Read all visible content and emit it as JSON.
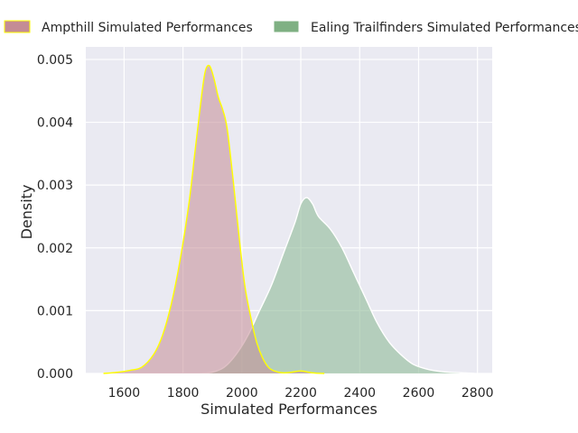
{
  "chart_data": {
    "type": "area",
    "subtype": "kde",
    "title": "",
    "xlabel": "Simulated Performances",
    "ylabel": "Density",
    "xlim": [
      1470,
      2850
    ],
    "ylim": [
      0,
      0.0052
    ],
    "xticks": [
      1600,
      1800,
      2000,
      2200,
      2400,
      2600,
      2800
    ],
    "yticks": [
      0.0,
      0.001,
      0.002,
      0.003,
      0.004,
      0.005
    ],
    "ytick_labels": [
      "0.000",
      "0.001",
      "0.002",
      "0.003",
      "0.004",
      "0.005"
    ],
    "grid": true,
    "legend_position": "top",
    "background": "#eaeaf2",
    "series": [
      {
        "name": "Ampthill Simulated Performances",
        "fill": "#c48c95",
        "fill_opacity": 0.55,
        "edge": "#ffff00",
        "x": [
          1530,
          1580,
          1620,
          1660,
          1700,
          1730,
          1760,
          1790,
          1820,
          1840,
          1860,
          1875,
          1890,
          1905,
          1920,
          1935,
          1950,
          1970,
          1990,
          2010,
          2030,
          2050,
          2070,
          2090,
          2110,
          2140,
          2170,
          2200,
          2240,
          2280
        ],
        "y": [
          0,
          2e-05,
          5e-05,
          0.0001,
          0.0003,
          0.0006,
          0.0011,
          0.0018,
          0.0027,
          0.0035,
          0.0043,
          0.0048,
          0.0049,
          0.0047,
          0.0044,
          0.0042,
          0.0039,
          0.0031,
          0.0022,
          0.0014,
          0.0009,
          0.0005,
          0.00025,
          0.0001,
          4e-05,
          1e-05,
          2e-05,
          4e-05,
          1e-05,
          0
        ]
      },
      {
        "name": "Ealing Trailfinders Simulated Performances",
        "fill": "#8fba98",
        "fill_opacity": 0.6,
        "edge": "#ffffff",
        "x": [
          1860,
          1900,
          1940,
          1980,
          2020,
          2060,
          2100,
          2140,
          2180,
          2200,
          2220,
          2240,
          2260,
          2300,
          2340,
          2380,
          2420,
          2460,
          2500,
          2540,
          2580,
          2620,
          2660,
          2700,
          2750,
          2790
        ],
        "y": [
          0,
          2e-05,
          0.0001,
          0.0003,
          0.0006,
          0.001,
          0.0014,
          0.0019,
          0.0024,
          0.0027,
          0.0028,
          0.0027,
          0.0025,
          0.0023,
          0.002,
          0.0016,
          0.0012,
          0.0008,
          0.0005,
          0.0003,
          0.00015,
          8e-05,
          4e-05,
          2e-05,
          1e-05,
          0
        ]
      }
    ]
  }
}
